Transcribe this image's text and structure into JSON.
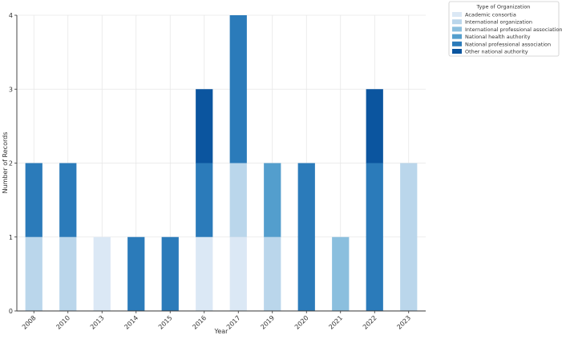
{
  "chart_data": {
    "type": "bar",
    "stacked": true,
    "title": "",
    "xlabel": "Year",
    "ylabel": "Number of Records",
    "ylim": [
      0,
      4
    ],
    "yticks": [
      0,
      1,
      2,
      3,
      4
    ],
    "grid": true,
    "legend_title": "Type of Organization",
    "legend_position": "top-right outside",
    "categories": [
      "2008",
      "2010",
      "2013",
      "2014",
      "2015",
      "2016",
      "2017",
      "2019",
      "2020",
      "2021",
      "2022",
      "2023"
    ],
    "series": [
      {
        "name": "Academic consortia",
        "color": "#dbe8f5",
        "values": [
          0,
          0,
          1,
          0,
          0,
          1,
          1,
          0,
          0,
          0,
          0,
          0
        ]
      },
      {
        "name": "International organization",
        "color": "#bad6eb",
        "values": [
          1,
          1,
          0,
          0,
          0,
          0,
          1,
          1,
          0,
          0,
          0,
          2
        ]
      },
      {
        "name": "International professional association",
        "color": "#8bbfde",
        "values": [
          0,
          0,
          0,
          0,
          0,
          0,
          0,
          0,
          0,
          1,
          0,
          0
        ]
      },
      {
        "name": "National health authority",
        "color": "#539ecd",
        "values": [
          0,
          0,
          0,
          0,
          0,
          0,
          0,
          1,
          0,
          0,
          0,
          0
        ]
      },
      {
        "name": "National professional association",
        "color": "#2b7bba",
        "values": [
          1,
          1,
          0,
          1,
          1,
          1,
          2,
          0,
          2,
          0,
          2,
          0
        ]
      },
      {
        "name": "Other national authority",
        "color": "#0b559f",
        "values": [
          0,
          0,
          0,
          0,
          0,
          1,
          0,
          0,
          0,
          0,
          1,
          0
        ]
      }
    ]
  }
}
